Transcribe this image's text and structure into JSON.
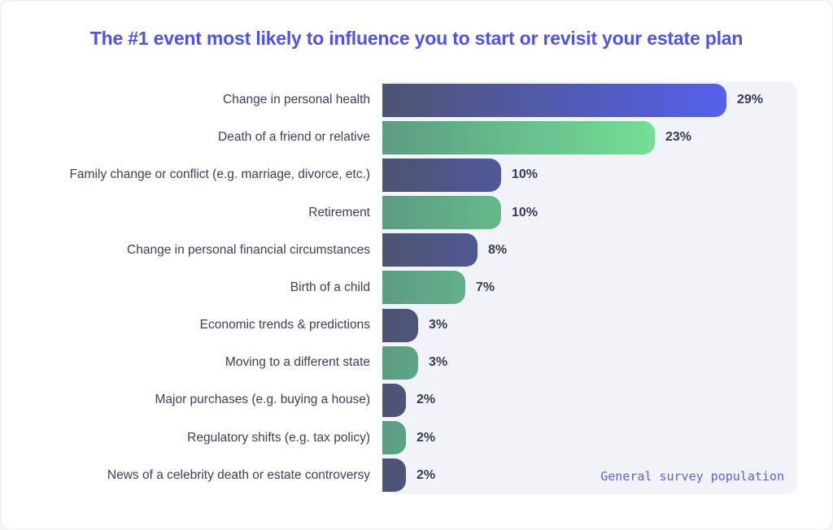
{
  "title": "The #1 event most likely to influence you to start or revisit your estate plan",
  "chart_data": {
    "type": "bar",
    "orientation": "horizontal",
    "title": "The #1 event most likely to influence you to start or revisit your estate plan",
    "categories": [
      "Change in personal health",
      "Death of a friend or relative",
      "Family change or conflict (e.g. marriage, divorce, etc.)",
      "Retirement",
      "Change in personal financial circumstances",
      "Birth of a child",
      "Economic trends & predictions",
      "Moving to a different state",
      "Major purchases (e.g. buying a house)",
      "Regulatory shifts (e.g. tax policy)",
      "News of a celebrity death or estate controversy"
    ],
    "values": [
      29,
      23,
      10,
      10,
      8,
      7,
      3,
      3,
      2,
      2,
      2
    ],
    "value_labels": [
      "29%",
      "23%",
      "10%",
      "10%",
      "8%",
      "7%",
      "3%",
      "3%",
      "2%",
      "2%",
      "2%"
    ],
    "max_value": 29,
    "annotation": "General survey population",
    "annotation_position": "bottom-right",
    "grid": false,
    "axis_ticks_visible": false,
    "bar_color_pattern": [
      "dark",
      "green"
    ],
    "colors": {
      "dark_bar_gradient_start": "#4d5470",
      "dark_bar_gradient_end": "#5560ec",
      "green_bar_gradient_start": "#5b9c83",
      "green_bar_gradient_end": "#74df94",
      "plot_background": "#f2f3f8",
      "title_text": "#4d53ea",
      "category_text": "#39415a",
      "value_text": "#353c55",
      "annotation_text": "#5a62f2",
      "card_background": "#ffffff"
    }
  }
}
